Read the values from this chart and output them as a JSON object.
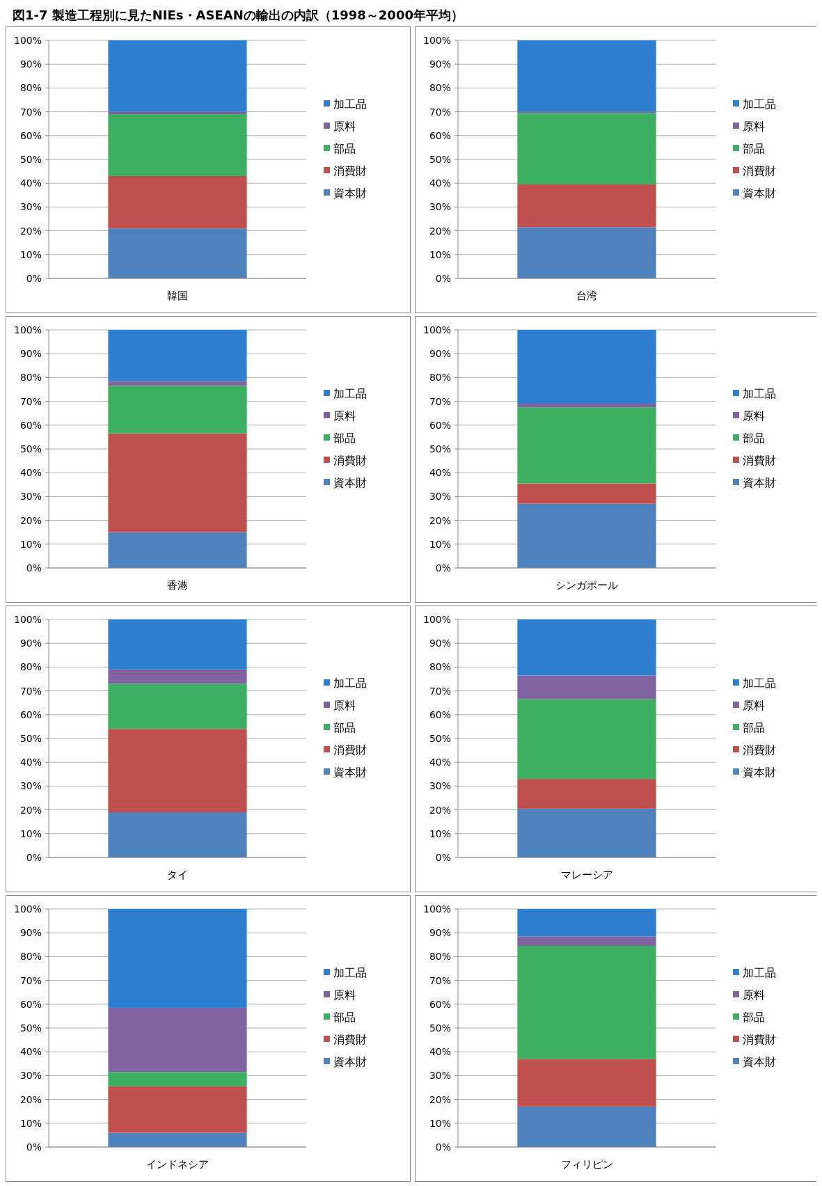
{
  "chart_data": [
    {
      "type": "bar",
      "title": "図1-7 製造工程別に見たNIEs・ASEANの輸出の内訳（1998～2000年平均）",
      "stacked": true,
      "categories": [
        "韓国"
      ],
      "ylim": [
        0,
        100
      ],
      "yticks": [
        {
          "value": 0,
          "label": "0%"
        },
        {
          "value": 10,
          "label": "10%"
        },
        {
          "value": 20,
          "label": "20%"
        },
        {
          "value": 30,
          "label": "30%"
        },
        {
          "value": 40,
          "label": "40%"
        },
        {
          "value": 50,
          "label": "50%"
        },
        {
          "value": 60,
          "label": "60%"
        },
        {
          "value": 70,
          "label": "70%"
        },
        {
          "value": 80,
          "label": "80%"
        },
        {
          "value": 90,
          "label": "90%"
        },
        {
          "value": 100,
          "label": "100%"
        }
      ],
      "grid": "y",
      "legend": "right",
      "series": [
        {
          "name": "資本財",
          "color": "#4f81bd",
          "values": [
            21
          ]
        },
        {
          "name": "消費財",
          "color": "#c0504d",
          "values": [
            22
          ]
        },
        {
          "name": "部品",
          "color": "#3cb060",
          "values": [
            26
          ]
        },
        {
          "name": "原料",
          "color": "#8064a2",
          "values": [
            1
          ]
        },
        {
          "name": "加工品",
          "color": "#2f7fd0",
          "values": [
            30
          ]
        }
      ]
    },
    {
      "type": "bar",
      "stacked": true,
      "categories": [
        "台湾"
      ],
      "ylim": [
        0,
        100
      ],
      "yticks": [
        {
          "value": 0,
          "label": "0%"
        },
        {
          "value": 10,
          "label": "10%"
        },
        {
          "value": 20,
          "label": "20%"
        },
        {
          "value": 30,
          "label": "30%"
        },
        {
          "value": 40,
          "label": "40%"
        },
        {
          "value": 50,
          "label": "50%"
        },
        {
          "value": 60,
          "label": "60%"
        },
        {
          "value": 70,
          "label": "70%"
        },
        {
          "value": 80,
          "label": "80%"
        },
        {
          "value": 90,
          "label": "90%"
        },
        {
          "value": 100,
          "label": "100%"
        }
      ],
      "grid": "y",
      "legend": "right",
      "series": [
        {
          "name": "資本財",
          "color": "#4f81bd",
          "values": [
            21.5
          ]
        },
        {
          "name": "消費財",
          "color": "#c0504d",
          "values": [
            18
          ]
        },
        {
          "name": "部品",
          "color": "#3cb060",
          "values": [
            30
          ]
        },
        {
          "name": "原料",
          "color": "#8064a2",
          "values": [
            0.5
          ]
        },
        {
          "name": "加工品",
          "color": "#2f7fd0",
          "values": [
            30
          ]
        }
      ]
    },
    {
      "type": "bar",
      "stacked": true,
      "categories": [
        "香港"
      ],
      "ylim": [
        0,
        100
      ],
      "yticks": [
        {
          "value": 0,
          "label": "0%"
        },
        {
          "value": 10,
          "label": "10%"
        },
        {
          "value": 20,
          "label": "20%"
        },
        {
          "value": 30,
          "label": "30%"
        },
        {
          "value": 40,
          "label": "40%"
        },
        {
          "value": 50,
          "label": "50%"
        },
        {
          "value": 60,
          "label": "60%"
        },
        {
          "value": 70,
          "label": "70%"
        },
        {
          "value": 80,
          "label": "80%"
        },
        {
          "value": 90,
          "label": "90%"
        },
        {
          "value": 100,
          "label": "100%"
        }
      ],
      "grid": "y",
      "legend": "right",
      "series": [
        {
          "name": "資本財",
          "color": "#4f81bd",
          "values": [
            15
          ]
        },
        {
          "name": "消費財",
          "color": "#c0504d",
          "values": [
            41.5
          ]
        },
        {
          "name": "部品",
          "color": "#3cb060",
          "values": [
            20
          ]
        },
        {
          "name": "原料",
          "color": "#8064a2",
          "values": [
            2
          ]
        },
        {
          "name": "加工品",
          "color": "#2f7fd0",
          "values": [
            21.5
          ]
        }
      ]
    },
    {
      "type": "bar",
      "stacked": true,
      "categories": [
        "シンガポール"
      ],
      "ylim": [
        0,
        100
      ],
      "yticks": [
        {
          "value": 0,
          "label": "0%"
        },
        {
          "value": 10,
          "label": "10%"
        },
        {
          "value": 20,
          "label": "20%"
        },
        {
          "value": 30,
          "label": "30%"
        },
        {
          "value": 40,
          "label": "40%"
        },
        {
          "value": 50,
          "label": "50%"
        },
        {
          "value": 60,
          "label": "60%"
        },
        {
          "value": 70,
          "label": "70%"
        },
        {
          "value": 80,
          "label": "80%"
        },
        {
          "value": 90,
          "label": "90%"
        },
        {
          "value": 100,
          "label": "100%"
        }
      ],
      "grid": "y",
      "legend": "right",
      "series": [
        {
          "name": "資本財",
          "color": "#4f81bd",
          "values": [
            27
          ]
        },
        {
          "name": "消費財",
          "color": "#c0504d",
          "values": [
            8.5
          ]
        },
        {
          "name": "部品",
          "color": "#3cb060",
          "values": [
            32
          ]
        },
        {
          "name": "原料",
          "color": "#8064a2",
          "values": [
            1.5
          ]
        },
        {
          "name": "加工品",
          "color": "#2f7fd0",
          "values": [
            31
          ]
        }
      ]
    },
    {
      "type": "bar",
      "stacked": true,
      "categories": [
        "タイ"
      ],
      "ylim": [
        0,
        100
      ],
      "yticks": [
        {
          "value": 0,
          "label": "0%"
        },
        {
          "value": 10,
          "label": "10%"
        },
        {
          "value": 20,
          "label": "20%"
        },
        {
          "value": 30,
          "label": "30%"
        },
        {
          "value": 40,
          "label": "40%"
        },
        {
          "value": 50,
          "label": "50%"
        },
        {
          "value": 60,
          "label": "60%"
        },
        {
          "value": 70,
          "label": "70%"
        },
        {
          "value": 80,
          "label": "80%"
        },
        {
          "value": 90,
          "label": "90%"
        },
        {
          "value": 100,
          "label": "100%"
        }
      ],
      "grid": "y",
      "legend": "right",
      "series": [
        {
          "name": "資本財",
          "color": "#4f81bd",
          "values": [
            19
          ]
        },
        {
          "name": "消費財",
          "color": "#c0504d",
          "values": [
            35
          ]
        },
        {
          "name": "部品",
          "color": "#3cb060",
          "values": [
            19
          ]
        },
        {
          "name": "原料",
          "color": "#8064a2",
          "values": [
            6
          ]
        },
        {
          "name": "加工品",
          "color": "#2f7fd0",
          "values": [
            21
          ]
        }
      ]
    },
    {
      "type": "bar",
      "stacked": true,
      "categories": [
        "マレーシア"
      ],
      "ylim": [
        0,
        100
      ],
      "yticks": [
        {
          "value": 0,
          "label": "0%"
        },
        {
          "value": 10,
          "label": "10%"
        },
        {
          "value": 20,
          "label": "20%"
        },
        {
          "value": 30,
          "label": "30%"
        },
        {
          "value": 40,
          "label": "40%"
        },
        {
          "value": 50,
          "label": "50%"
        },
        {
          "value": 60,
          "label": "60%"
        },
        {
          "value": 70,
          "label": "70%"
        },
        {
          "value": 80,
          "label": "80%"
        },
        {
          "value": 90,
          "label": "90%"
        },
        {
          "value": 100,
          "label": "100%"
        }
      ],
      "grid": "y",
      "legend": "right",
      "series": [
        {
          "name": "資本財",
          "color": "#4f81bd",
          "values": [
            20.5
          ]
        },
        {
          "name": "消費財",
          "color": "#c0504d",
          "values": [
            12.5
          ]
        },
        {
          "name": "部品",
          "color": "#3cb060",
          "values": [
            33.5
          ]
        },
        {
          "name": "原料",
          "color": "#8064a2",
          "values": [
            10
          ]
        },
        {
          "name": "加工品",
          "color": "#2f7fd0",
          "values": [
            23.5
          ]
        }
      ]
    },
    {
      "type": "bar",
      "stacked": true,
      "categories": [
        "インドネシア"
      ],
      "ylim": [
        0,
        100
      ],
      "yticks": [
        {
          "value": 0,
          "label": "0%"
        },
        {
          "value": 10,
          "label": "10%"
        },
        {
          "value": 20,
          "label": "20%"
        },
        {
          "value": 30,
          "label": "30%"
        },
        {
          "value": 40,
          "label": "40%"
        },
        {
          "value": 50,
          "label": "50%"
        },
        {
          "value": 60,
          "label": "60%"
        },
        {
          "value": 70,
          "label": "70%"
        },
        {
          "value": 80,
          "label": "80%"
        },
        {
          "value": 90,
          "label": "90%"
        },
        {
          "value": 100,
          "label": "100%"
        }
      ],
      "grid": "y",
      "legend": "right",
      "series": [
        {
          "name": "資本財",
          "color": "#4f81bd",
          "values": [
            6
          ]
        },
        {
          "name": "消費財",
          "color": "#c0504d",
          "values": [
            19.5
          ]
        },
        {
          "name": "部品",
          "color": "#3cb060",
          "values": [
            6
          ]
        },
        {
          "name": "原料",
          "color": "#8064a2",
          "values": [
            27
          ]
        },
        {
          "name": "加工品",
          "color": "#2f7fd0",
          "values": [
            41.5
          ]
        }
      ]
    },
    {
      "type": "bar",
      "stacked": true,
      "categories": [
        "フィリピン"
      ],
      "ylim": [
        0,
        100
      ],
      "yticks": [
        {
          "value": 0,
          "label": "0%"
        },
        {
          "value": 10,
          "label": "10%"
        },
        {
          "value": 20,
          "label": "20%"
        },
        {
          "value": 30,
          "label": "30%"
        },
        {
          "value": 40,
          "label": "40%"
        },
        {
          "value": 50,
          "label": "50%"
        },
        {
          "value": 60,
          "label": "60%"
        },
        {
          "value": 70,
          "label": "70%"
        },
        {
          "value": 80,
          "label": "80%"
        },
        {
          "value": 90,
          "label": "90%"
        },
        {
          "value": 100,
          "label": "100%"
        }
      ],
      "grid": "y",
      "legend": "right",
      "series": [
        {
          "name": "資本財",
          "color": "#4f81bd",
          "values": [
            17
          ]
        },
        {
          "name": "消費財",
          "color": "#c0504d",
          "values": [
            20
          ]
        },
        {
          "name": "部品",
          "color": "#3cb060",
          "values": [
            47.5
          ]
        },
        {
          "name": "原料",
          "color": "#8064a2",
          "values": [
            4
          ]
        },
        {
          "name": "加工品",
          "color": "#2f7fd0",
          "values": [
            11.5
          ]
        }
      ]
    }
  ]
}
